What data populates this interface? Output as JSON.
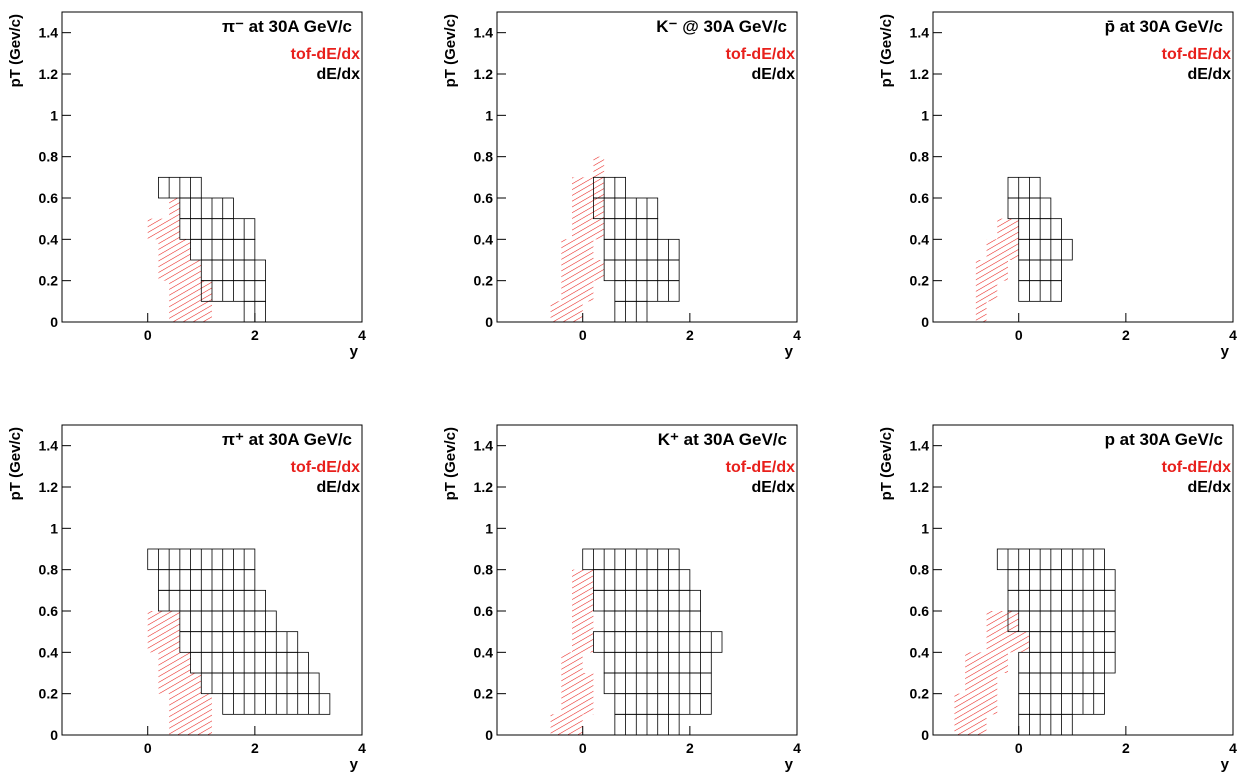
{
  "chart_data": [
    {
      "type": "acceptance",
      "title": "π⁻ at 30A GeV/c",
      "x_label": "y",
      "y_label": "pT (Gev/c)",
      "xlim": [
        -1.6,
        4
      ],
      "ylim": [
        0,
        1.5
      ],
      "xticks": [
        0,
        2,
        4
      ],
      "yticks": [
        0,
        0.2,
        0.4,
        0.6,
        0.8,
        1,
        1.2,
        1.4
      ],
      "series": [
        {
          "name": "tof-dE/dx",
          "color": "#e8201c",
          "hatch": true,
          "rows": [
            [
              0.5,
              0.6,
              0.4,
              0.6
            ],
            [
              0.4,
              0.5,
              0.0,
              0.6
            ],
            [
              0.3,
              0.4,
              0.2,
              0.8
            ],
            [
              0.2,
              0.3,
              0.2,
              1.0
            ],
            [
              0.1,
              0.2,
              0.4,
              1.2
            ],
            [
              0.0,
              0.1,
              0.4,
              1.2
            ]
          ]
        },
        {
          "name": "dE/dx",
          "color": "#000000",
          "hatch": false,
          "cell_width": 0.2,
          "rows": [
            [
              0.6,
              0.7,
              0.2,
              1.0
            ],
            [
              0.5,
              0.6,
              0.6,
              1.6
            ],
            [
              0.4,
              0.5,
              0.6,
              2.0
            ],
            [
              0.3,
              0.4,
              0.8,
              2.0
            ],
            [
              0.2,
              0.3,
              1.0,
              2.2
            ],
            [
              0.1,
              0.2,
              1.0,
              2.2
            ],
            [
              0.0,
              0.1,
              1.8,
              2.2
            ]
          ]
        }
      ]
    },
    {
      "type": "acceptance",
      "title": "K⁻ @ 30A GeV/c",
      "x_label": "y",
      "y_label": "pT (Gev/c)",
      "xlim": [
        -1.6,
        4
      ],
      "ylim": [
        0,
        1.5
      ],
      "xticks": [
        0,
        2,
        4
      ],
      "yticks": [
        0,
        0.2,
        0.4,
        0.6,
        0.8,
        1,
        1.2,
        1.4
      ],
      "series": [
        {
          "name": "tof-dE/dx",
          "color": "#e8201c",
          "hatch": true,
          "rows": [
            [
              0.7,
              0.8,
              0.2,
              0.4
            ],
            [
              0.6,
              0.7,
              -0.2,
              0.4
            ],
            [
              0.5,
              0.6,
              -0.2,
              0.4
            ],
            [
              0.4,
              0.5,
              -0.2,
              0.4
            ],
            [
              0.3,
              0.4,
              -0.4,
              0.2
            ],
            [
              0.2,
              0.3,
              -0.4,
              0.4
            ],
            [
              0.1,
              0.2,
              -0.4,
              0.2
            ],
            [
              0.0,
              0.1,
              -0.6,
              0.0
            ]
          ]
        },
        {
          "name": "dE/dx",
          "color": "#000000",
          "hatch": false,
          "cell_width": 0.2,
          "rows": [
            [
              0.6,
              0.7,
              0.2,
              0.8
            ],
            [
              0.5,
              0.6,
              0.2,
              1.4
            ],
            [
              0.4,
              0.5,
              0.4,
              1.4
            ],
            [
              0.3,
              0.4,
              0.4,
              1.8
            ],
            [
              0.2,
              0.3,
              0.4,
              1.8
            ],
            [
              0.1,
              0.2,
              0.6,
              1.8
            ],
            [
              0.0,
              0.1,
              0.6,
              1.2
            ]
          ]
        }
      ]
    },
    {
      "type": "acceptance",
      "title": "p̄ at 30A GeV/c",
      "x_label": "y",
      "y_label": "pT (Gev/c)",
      "xlim": [
        -1.6,
        4
      ],
      "ylim": [
        0,
        1.5
      ],
      "xticks": [
        0,
        2,
        4
      ],
      "yticks": [
        0,
        0.2,
        0.4,
        0.6,
        0.8,
        1,
        1.2,
        1.4
      ],
      "series": [
        {
          "name": "tof-dE/dx",
          "color": "#e8201c",
          "hatch": true,
          "rows": [
            [
              0.4,
              0.5,
              -0.4,
              0.0
            ],
            [
              0.3,
              0.4,
              -0.6,
              0.0
            ],
            [
              0.2,
              0.3,
              -0.8,
              -0.2
            ],
            [
              0.1,
              0.2,
              -0.8,
              -0.4
            ],
            [
              0.0,
              0.1,
              -0.8,
              -0.6
            ]
          ]
        },
        {
          "name": "dE/dx",
          "color": "#000000",
          "hatch": false,
          "cell_width": 0.2,
          "rows": [
            [
              0.6,
              0.7,
              -0.2,
              0.4
            ],
            [
              0.5,
              0.6,
              -0.2,
              0.6
            ],
            [
              0.4,
              0.5,
              0.0,
              0.8
            ],
            [
              0.3,
              0.4,
              0.0,
              1.0
            ],
            [
              0.2,
              0.3,
              0.0,
              0.8
            ],
            [
              0.1,
              0.2,
              0.0,
              0.8
            ]
          ]
        }
      ]
    },
    {
      "type": "acceptance",
      "title": "π⁺ at 30A GeV/c",
      "x_label": "y",
      "y_label": "pT (Gev/c)",
      "xlim": [
        -1.6,
        4
      ],
      "ylim": [
        0,
        1.5
      ],
      "xticks": [
        0,
        2,
        4
      ],
      "yticks": [
        0,
        0.2,
        0.4,
        0.6,
        0.8,
        1,
        1.2,
        1.4
      ],
      "series": [
        {
          "name": "tof-dE/dx",
          "color": "#e8201c",
          "hatch": true,
          "rows": [
            [
              0.5,
              0.6,
              0.0,
              0.6
            ],
            [
              0.4,
              0.5,
              0.0,
              0.6
            ],
            [
              0.3,
              0.4,
              0.2,
              0.8
            ],
            [
              0.2,
              0.3,
              0.2,
              1.0
            ],
            [
              0.1,
              0.2,
              0.4,
              1.2
            ],
            [
              0.0,
              0.1,
              0.4,
              1.2
            ]
          ]
        },
        {
          "name": "dE/dx",
          "color": "#000000",
          "hatch": false,
          "cell_width": 0.2,
          "rows": [
            [
              0.8,
              0.9,
              0.0,
              2.0
            ],
            [
              0.7,
              0.8,
              0.2,
              2.0
            ],
            [
              0.6,
              0.7,
              0.2,
              2.2
            ],
            [
              0.5,
              0.6,
              0.6,
              2.4
            ],
            [
              0.4,
              0.5,
              0.6,
              2.8
            ],
            [
              0.3,
              0.4,
              0.8,
              3.0
            ],
            [
              0.2,
              0.3,
              1.0,
              3.2
            ],
            [
              0.1,
              0.2,
              1.4,
              3.4
            ]
          ]
        }
      ]
    },
    {
      "type": "acceptance",
      "title": "K⁺ at 30A GeV/c",
      "x_label": "y",
      "y_label": "pT (Gev/c)",
      "xlim": [
        -1.6,
        4
      ],
      "ylim": [
        0,
        1.5
      ],
      "xticks": [
        0,
        2,
        4
      ],
      "yticks": [
        0,
        0.2,
        0.4,
        0.6,
        0.8,
        1,
        1.2,
        1.4
      ],
      "series": [
        {
          "name": "tof-dE/dx",
          "color": "#e8201c",
          "hatch": true,
          "rows": [
            [
              0.7,
              0.8,
              -0.2,
              0.2
            ],
            [
              0.6,
              0.7,
              -0.2,
              0.2
            ],
            [
              0.5,
              0.6,
              -0.2,
              0.2
            ],
            [
              0.4,
              0.5,
              -0.2,
              0.2
            ],
            [
              0.3,
              0.4,
              -0.4,
              0.0
            ],
            [
              0.2,
              0.3,
              -0.4,
              0.2
            ],
            [
              0.1,
              0.2,
              -0.4,
              0.2
            ],
            [
              0.0,
              0.1,
              -0.6,
              0.0
            ]
          ]
        },
        {
          "name": "dE/dx",
          "color": "#000000",
          "hatch": false,
          "cell_width": 0.2,
          "rows": [
            [
              0.8,
              0.9,
              0.0,
              1.8
            ],
            [
              0.7,
              0.8,
              0.2,
              2.0
            ],
            [
              0.6,
              0.7,
              0.2,
              2.2
            ],
            [
              0.5,
              0.6,
              0.4,
              2.2
            ],
            [
              0.4,
              0.5,
              0.2,
              2.6
            ],
            [
              0.3,
              0.4,
              0.4,
              2.4
            ],
            [
              0.2,
              0.3,
              0.4,
              2.4
            ],
            [
              0.1,
              0.2,
              0.6,
              2.4
            ],
            [
              0.0,
              0.1,
              0.6,
              1.8
            ]
          ]
        }
      ]
    },
    {
      "type": "acceptance",
      "title": "p at 30A GeV/c",
      "x_label": "y",
      "y_label": "pT (Gev/c)",
      "xlim": [
        -1.6,
        4
      ],
      "ylim": [
        0,
        1.5
      ],
      "xticks": [
        0,
        2,
        4
      ],
      "yticks": [
        0,
        0.2,
        0.4,
        0.6,
        0.8,
        1,
        1.2,
        1.4
      ],
      "series": [
        {
          "name": "tof-dE/dx",
          "color": "#e8201c",
          "hatch": true,
          "rows": [
            [
              0.5,
              0.6,
              -0.6,
              0.0
            ],
            [
              0.4,
              0.5,
              -0.6,
              0.2
            ],
            [
              0.3,
              0.4,
              -1.0,
              -0.2
            ],
            [
              0.2,
              0.3,
              -1.0,
              -0.4
            ],
            [
              0.1,
              0.2,
              -1.2,
              -0.4
            ],
            [
              0.0,
              0.1,
              -1.2,
              -0.6
            ]
          ]
        },
        {
          "name": "dE/dx",
          "color": "#000000",
          "hatch": false,
          "cell_width": 0.2,
          "rows": [
            [
              0.8,
              0.9,
              -0.4,
              1.6
            ],
            [
              0.7,
              0.8,
              -0.2,
              1.8
            ],
            [
              0.6,
              0.7,
              -0.2,
              1.8
            ],
            [
              0.5,
              0.6,
              -0.2,
              1.8
            ],
            [
              0.4,
              0.5,
              0.2,
              1.8
            ],
            [
              0.3,
              0.4,
              0.0,
              1.8
            ],
            [
              0.2,
              0.3,
              0.0,
              1.6
            ],
            [
              0.1,
              0.2,
              0.0,
              1.6
            ],
            [
              0.0,
              0.1,
              0.0,
              1.0
            ]
          ]
        }
      ]
    }
  ]
}
